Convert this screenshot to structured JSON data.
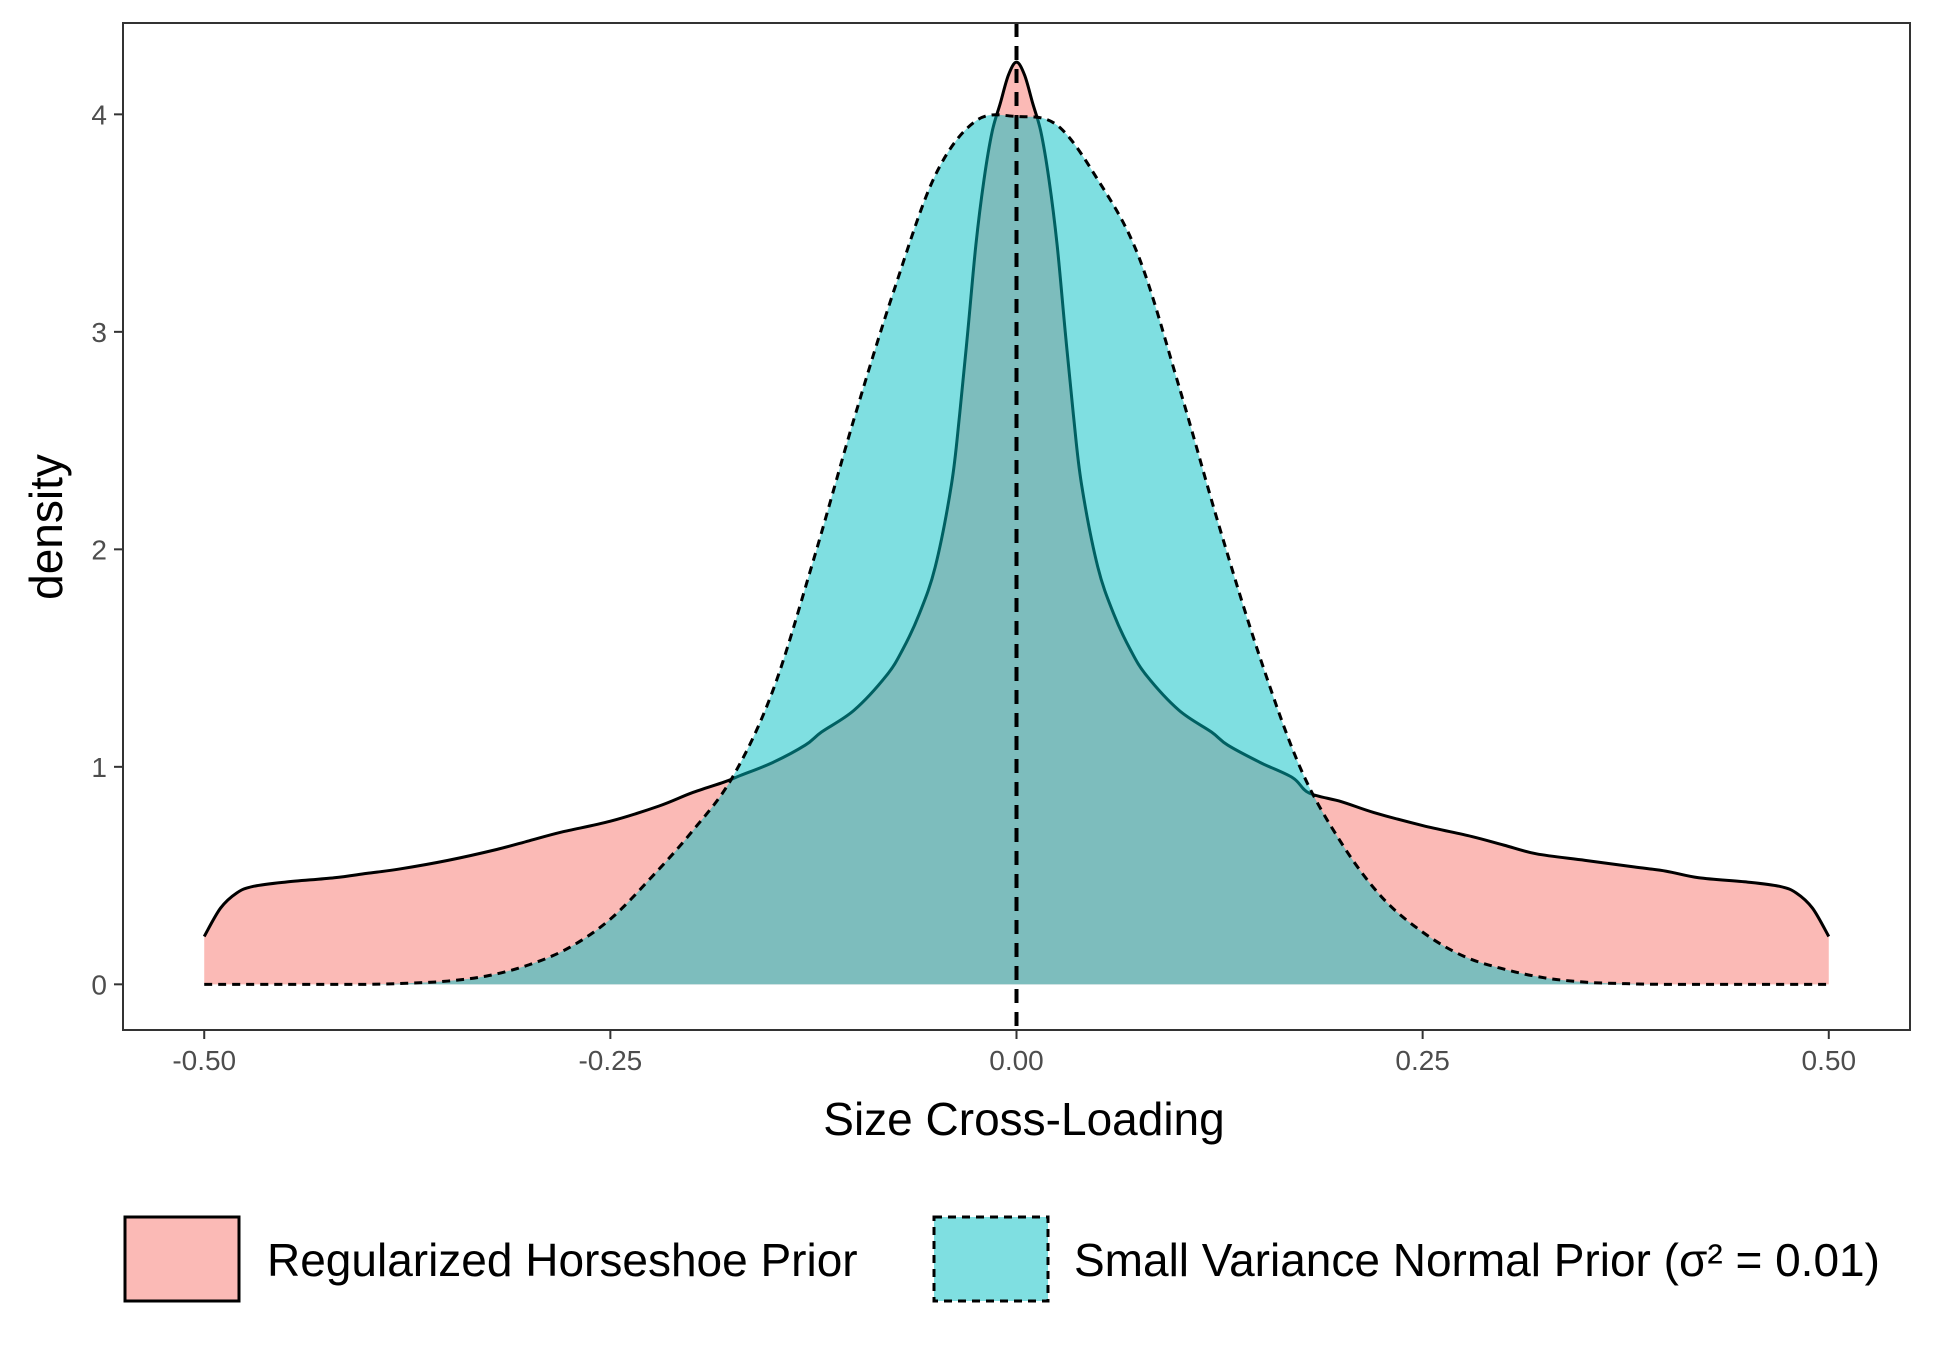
{
  "chart_data": {
    "type": "area",
    "title": "",
    "xlabel": "Size Cross-Loading",
    "ylabel": "density",
    "xlim": [
      -0.55,
      0.55
    ],
    "ylim": [
      -0.21,
      4.42
    ],
    "x_ticks": [
      {
        "value": -0.5,
        "label": "-0.50"
      },
      {
        "value": -0.25,
        "label": "-0.25"
      },
      {
        "value": 0.0,
        "label": "0.00"
      },
      {
        "value": 0.25,
        "label": "0.25"
      },
      {
        "value": 0.5,
        "label": "0.50"
      }
    ],
    "y_ticks": [
      {
        "value": 0,
        "label": "0"
      },
      {
        "value": 1,
        "label": "1"
      },
      {
        "value": 2,
        "label": "2"
      },
      {
        "value": 3,
        "label": "3"
      },
      {
        "value": 4,
        "label": "4"
      }
    ],
    "vline": {
      "x": 0,
      "style": "dashed"
    },
    "grid": false,
    "legend_position": "bottom",
    "series": [
      {
        "name": "Regularized Horseshoe Prior",
        "fill": "#F8766D",
        "line_style": "solid",
        "x": [
          -0.5,
          -0.49,
          -0.48,
          -0.47,
          -0.45,
          -0.42,
          -0.4,
          -0.38,
          -0.35,
          -0.32,
          -0.3,
          -0.28,
          -0.25,
          -0.22,
          -0.2,
          -0.18,
          -0.17,
          -0.15,
          -0.13,
          -0.12,
          -0.1,
          -0.08,
          -0.07,
          -0.06,
          -0.05,
          -0.04,
          -0.035,
          -0.03,
          -0.025,
          -0.02,
          -0.015,
          -0.01,
          -0.005,
          0.0,
          0.005,
          0.01,
          0.015,
          0.02,
          0.025,
          0.03,
          0.035,
          0.04,
          0.05,
          0.06,
          0.07,
          0.08,
          0.1,
          0.12,
          0.13,
          0.15,
          0.17,
          0.18,
          0.2,
          0.22,
          0.25,
          0.28,
          0.3,
          0.32,
          0.35,
          0.38,
          0.4,
          0.42,
          0.45,
          0.47,
          0.48,
          0.49,
          0.5
        ],
        "y": [
          0.22,
          0.35,
          0.42,
          0.45,
          0.47,
          0.49,
          0.51,
          0.53,
          0.57,
          0.62,
          0.66,
          0.7,
          0.75,
          0.82,
          0.88,
          0.93,
          0.96,
          1.02,
          1.1,
          1.16,
          1.26,
          1.42,
          1.54,
          1.7,
          1.92,
          2.3,
          2.62,
          3.0,
          3.4,
          3.7,
          3.92,
          4.05,
          4.18,
          4.24,
          4.18,
          4.05,
          3.92,
          3.7,
          3.4,
          3.0,
          2.62,
          2.3,
          1.92,
          1.7,
          1.54,
          1.42,
          1.26,
          1.16,
          1.1,
          1.02,
          0.95,
          0.88,
          0.84,
          0.79,
          0.73,
          0.68,
          0.64,
          0.6,
          0.57,
          0.54,
          0.52,
          0.49,
          0.47,
          0.45,
          0.42,
          0.35,
          0.22
        ]
      },
      {
        "name": "Small Variance Normal Prior (σ² = 0.01)",
        "fill": "#00BFC4",
        "line_style": "dashed",
        "x": [
          -0.5,
          -0.45,
          -0.4,
          -0.375,
          -0.35,
          -0.325,
          -0.3,
          -0.275,
          -0.25,
          -0.225,
          -0.2,
          -0.175,
          -0.15,
          -0.125,
          -0.1,
          -0.075,
          -0.05,
          -0.025,
          0.0,
          0.025,
          0.05,
          0.075,
          0.1,
          0.125,
          0.15,
          0.175,
          0.2,
          0.225,
          0.25,
          0.275,
          0.3,
          0.325,
          0.35,
          0.375,
          0.4,
          0.45,
          0.5
        ],
        "y": [
          0.0,
          0.0,
          0.0,
          0.005,
          0.015,
          0.04,
          0.09,
          0.17,
          0.3,
          0.49,
          0.7,
          0.95,
          1.35,
          1.95,
          2.6,
          3.2,
          3.72,
          3.97,
          3.99,
          3.95,
          3.7,
          3.35,
          2.75,
          2.1,
          1.5,
          0.99,
          0.65,
          0.4,
          0.24,
          0.13,
          0.07,
          0.03,
          0.01,
          0.003,
          0.0,
          0.0,
          0.0
        ]
      }
    ]
  },
  "legend": {
    "items": [
      {
        "label": "Regularized Horseshoe Prior"
      },
      {
        "label": "Small Variance Normal Prior (σ² = 0.01)"
      }
    ]
  }
}
